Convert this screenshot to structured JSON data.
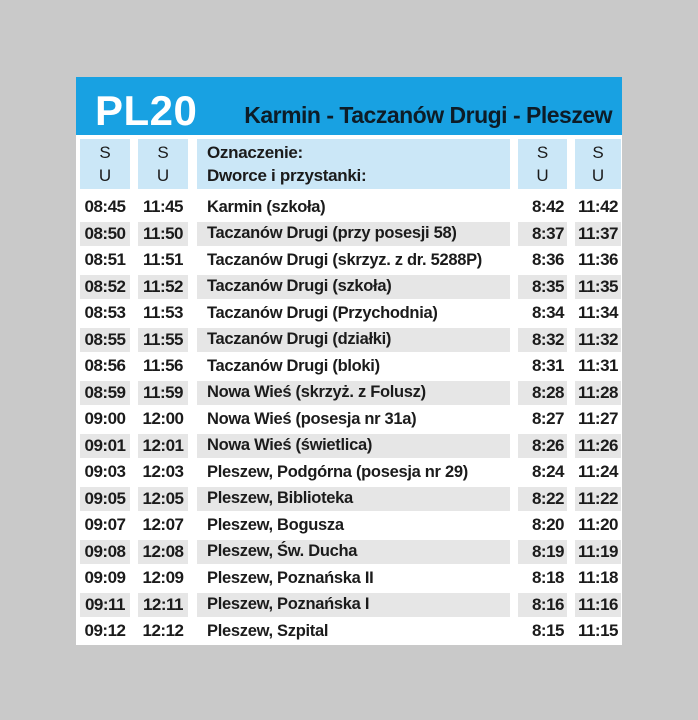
{
  "colors": {
    "page_bg": "#c9c9c9",
    "card_bg": "#ffffff",
    "header_bg": "#18a1e2",
    "header_code_color": "#ffffff",
    "header_route_color": "#0d1c27",
    "subheader_bg": "#cbe7f7",
    "row_stripe_bg": "#e6e6e6",
    "row_text": "#1b1b1b"
  },
  "header": {
    "line_code": "PL20",
    "route": "Karmin - Taczanów Drugi - Pleszew"
  },
  "subheader": {
    "cols": [
      {
        "top": "S",
        "bottom": "U"
      },
      {
        "top": "S",
        "bottom": "U"
      },
      {
        "top": "Oznaczenie:",
        "bottom": "Dworce i przystanki:"
      },
      {
        "top": "S",
        "bottom": "U"
      },
      {
        "top": "S",
        "bottom": "U"
      }
    ]
  },
  "rows": [
    {
      "dep1": "08:45",
      "dep2": "11:45",
      "stop": "Karmin (szkoła)",
      "ret1": "8:42",
      "ret2": "11:42"
    },
    {
      "dep1": "08:50",
      "dep2": "11:50",
      "stop": "Taczanów Drugi (przy posesji 58)",
      "ret1": "8:37",
      "ret2": "11:37"
    },
    {
      "dep1": "08:51",
      "dep2": "11:51",
      "stop": "Taczanów Drugi (skrzyz. z dr. 5288P)",
      "ret1": "8:36",
      "ret2": "11:36"
    },
    {
      "dep1": "08:52",
      "dep2": "11:52",
      "stop": "Taczanów Drugi (szkoła)",
      "ret1": "8:35",
      "ret2": "11:35"
    },
    {
      "dep1": "08:53",
      "dep2": "11:53",
      "stop": "Taczanów Drugi (Przychodnia)",
      "ret1": "8:34",
      "ret2": "11:34"
    },
    {
      "dep1": "08:55",
      "dep2": "11:55",
      "stop": "Taczanów Drugi (działki)",
      "ret1": "8:32",
      "ret2": "11:32"
    },
    {
      "dep1": "08:56",
      "dep2": "11:56",
      "stop": "Taczanów Drugi (bloki)",
      "ret1": "8:31",
      "ret2": "11:31"
    },
    {
      "dep1": "08:59",
      "dep2": "11:59",
      "stop": "Nowa Wieś (skrzyż. z Folusz)",
      "ret1": "8:28",
      "ret2": "11:28"
    },
    {
      "dep1": "09:00",
      "dep2": "12:00",
      "stop": "Nowa Wieś (posesja nr 31a)",
      "ret1": "8:27",
      "ret2": "11:27"
    },
    {
      "dep1": "09:01",
      "dep2": "12:01",
      "stop": "Nowa Wieś (świetlica)",
      "ret1": "8:26",
      "ret2": "11:26"
    },
    {
      "dep1": "09:03",
      "dep2": "12:03",
      "stop": "Pleszew, Podgórna (posesja nr 29)",
      "ret1": "8:24",
      "ret2": "11:24"
    },
    {
      "dep1": "09:05",
      "dep2": "12:05",
      "stop": "Pleszew, Biblioteka",
      "ret1": "8:22",
      "ret2": "11:22"
    },
    {
      "dep1": "09:07",
      "dep2": "12:07",
      "stop": "Pleszew, Bogusza",
      "ret1": "8:20",
      "ret2": "11:20"
    },
    {
      "dep1": "09:08",
      "dep2": "12:08",
      "stop": "Pleszew, Św. Ducha",
      "ret1": "8:19",
      "ret2": "11:19"
    },
    {
      "dep1": "09:09",
      "dep2": "12:09",
      "stop": "Pleszew, Poznańska II",
      "ret1": "8:18",
      "ret2": "11:18"
    },
    {
      "dep1": "09:11",
      "dep2": "12:11",
      "stop": "Pleszew, Poznańska I",
      "ret1": "8:16",
      "ret2": "11:16"
    },
    {
      "dep1": "09:12",
      "dep2": "12:12",
      "stop": "Pleszew, Szpital",
      "ret1": "8:15",
      "ret2": "11:15"
    }
  ]
}
